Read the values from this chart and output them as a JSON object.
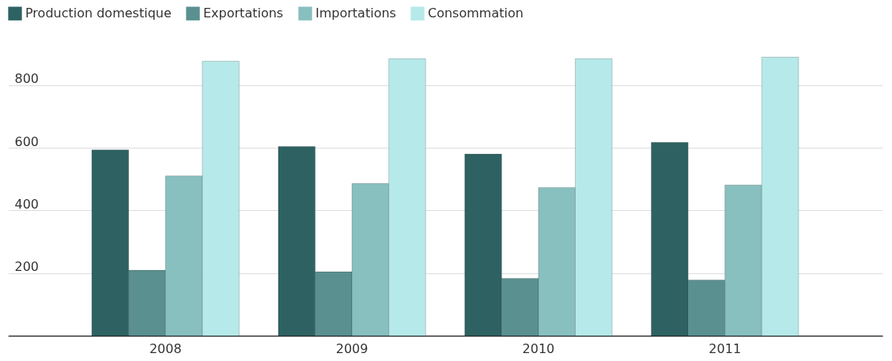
{
  "chart_data": {
    "type": "bar",
    "categories": [
      "2008",
      "2009",
      "2010",
      "2011"
    ],
    "series": [
      {
        "name": "Production domestique",
        "color": "#2e6262",
        "values": [
          593,
          604,
          580,
          617
        ]
      },
      {
        "name": "Exportations",
        "color": "#5a9090",
        "values": [
          209,
          204,
          183,
          178
        ]
      },
      {
        "name": "Importations",
        "color": "#88bfbf",
        "values": [
          510,
          486,
          473,
          481
        ]
      },
      {
        "name": "Consommation",
        "color": "#b6e9e9",
        "values": [
          876,
          884,
          884,
          889
        ]
      }
    ],
    "ylim": [
      0,
      900
    ],
    "yticks": [
      200,
      400,
      600,
      800
    ],
    "grid": "y",
    "legend": "top left"
  }
}
